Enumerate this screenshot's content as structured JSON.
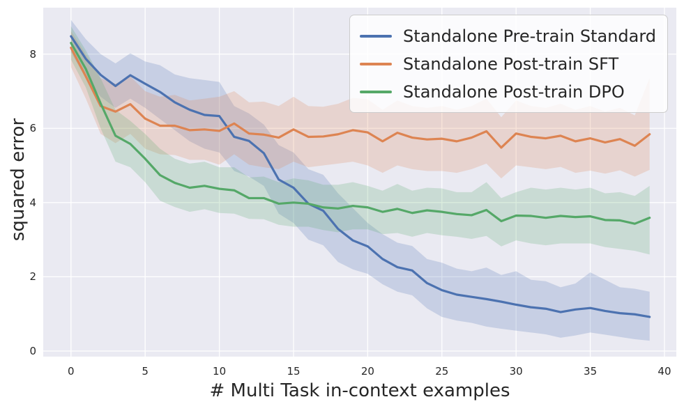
{
  "axes": {
    "background_color": "#eaeaf2",
    "grid_color": "#ffffff",
    "text_color": "#262626",
    "xticks": [
      0,
      5,
      10,
      15,
      20,
      25,
      30,
      35,
      40
    ],
    "yticks": [
      0,
      2,
      4,
      6,
      8
    ]
  },
  "chart_data": {
    "type": "line",
    "title": "",
    "xlabel": "# Multi Task in-context examples",
    "ylabel": "squared error",
    "xlim": [
      -1.87,
      40.8
    ],
    "ylim": [
      -0.15,
      9.25
    ],
    "grid": true,
    "legend_position": "upper right",
    "x": [
      0,
      1,
      2,
      3,
      4,
      5,
      6,
      7,
      8,
      9,
      10,
      11,
      12,
      13,
      14,
      15,
      16,
      17,
      18,
      19,
      20,
      21,
      22,
      23,
      24,
      25,
      26,
      27,
      28,
      29,
      30,
      31,
      32,
      33,
      34,
      35,
      36,
      37,
      38,
      39
    ],
    "series": [
      {
        "name": "Standalone Pre-train Standard",
        "color": "#4c72b0",
        "values": [
          8.48,
          7.87,
          7.44,
          7.14,
          7.43,
          7.2,
          6.98,
          6.7,
          6.5,
          6.36,
          6.33,
          5.77,
          5.66,
          5.33,
          4.62,
          4.4,
          3.97,
          3.78,
          3.29,
          2.98,
          2.82,
          2.48,
          2.26,
          2.17,
          1.83,
          1.64,
          1.52,
          1.46,
          1.4,
          1.33,
          1.25,
          1.18,
          1.14,
          1.05,
          1.12,
          1.16,
          1.08,
          1.02,
          0.99,
          0.92
        ],
        "band_upper": [
          8.92,
          8.4,
          8.0,
          7.75,
          8.02,
          7.8,
          7.7,
          7.45,
          7.35,
          7.3,
          7.25,
          6.6,
          6.4,
          6.1,
          5.55,
          5.35,
          4.9,
          4.75,
          4.25,
          3.85,
          3.45,
          3.15,
          2.92,
          2.83,
          2.48,
          2.38,
          2.22,
          2.15,
          2.25,
          2.05,
          2.15,
          1.92,
          1.88,
          1.72,
          1.82,
          2.12,
          1.92,
          1.72,
          1.68,
          1.6
        ],
        "band_lower": [
          8.05,
          7.35,
          6.85,
          6.55,
          6.8,
          6.55,
          6.25,
          5.95,
          5.65,
          5.45,
          5.35,
          4.85,
          4.7,
          4.45,
          3.7,
          3.45,
          3.0,
          2.85,
          2.4,
          2.2,
          2.08,
          1.8,
          1.6,
          1.5,
          1.15,
          0.92,
          0.82,
          0.76,
          0.66,
          0.6,
          0.55,
          0.5,
          0.45,
          0.36,
          0.42,
          0.5,
          0.44,
          0.38,
          0.32,
          0.28
        ]
      },
      {
        "name": "Standalone Post-train SFT",
        "color": "#dd8452",
        "values": [
          8.17,
          7.4,
          6.6,
          6.45,
          6.65,
          6.26,
          6.07,
          6.07,
          5.95,
          5.97,
          5.93,
          6.13,
          5.86,
          5.83,
          5.75,
          5.97,
          5.77,
          5.78,
          5.84,
          5.95,
          5.89,
          5.65,
          5.88,
          5.75,
          5.7,
          5.72,
          5.65,
          5.75,
          5.92,
          5.48,
          5.86,
          5.77,
          5.73,
          5.8,
          5.65,
          5.73,
          5.62,
          5.71,
          5.53,
          5.84
        ],
        "band_upper": [
          8.62,
          8.0,
          7.35,
          7.2,
          7.4,
          7.0,
          6.85,
          6.9,
          6.75,
          6.8,
          6.85,
          7.0,
          6.7,
          6.72,
          6.6,
          6.85,
          6.6,
          6.58,
          6.66,
          6.82,
          6.78,
          6.5,
          6.75,
          6.6,
          6.55,
          6.6,
          6.5,
          6.6,
          6.8,
          6.3,
          6.75,
          6.6,
          6.55,
          6.66,
          6.5,
          6.6,
          6.45,
          6.55,
          6.35,
          7.35
        ],
        "band_lower": [
          7.65,
          6.8,
          5.85,
          5.6,
          5.85,
          5.45,
          5.3,
          5.28,
          5.15,
          5.15,
          5.02,
          5.3,
          5.02,
          4.95,
          4.9,
          5.1,
          4.95,
          5.0,
          5.05,
          5.1,
          5.0,
          4.8,
          5.0,
          4.9,
          4.85,
          4.85,
          4.8,
          4.9,
          5.05,
          4.65,
          5.0,
          4.95,
          4.9,
          4.96,
          4.8,
          4.86,
          4.78,
          4.87,
          4.7,
          4.88
        ]
      },
      {
        "name": "Standalone Post-train DPO",
        "color": "#55a868",
        "values": [
          8.3,
          7.6,
          6.67,
          5.8,
          5.58,
          5.18,
          4.74,
          4.53,
          4.4,
          4.45,
          4.37,
          4.33,
          4.12,
          4.12,
          3.97,
          4.0,
          3.97,
          3.87,
          3.84,
          3.91,
          3.87,
          3.75,
          3.83,
          3.72,
          3.79,
          3.75,
          3.69,
          3.66,
          3.8,
          3.5,
          3.65,
          3.64,
          3.59,
          3.64,
          3.61,
          3.63,
          3.53,
          3.52,
          3.43,
          3.59
        ],
        "band_upper": [
          8.75,
          8.1,
          7.35,
          6.5,
          6.2,
          5.85,
          5.45,
          5.18,
          5.05,
          5.1,
          4.95,
          4.95,
          4.68,
          4.7,
          4.55,
          4.65,
          4.6,
          4.48,
          4.48,
          4.55,
          4.45,
          4.32,
          4.5,
          4.32,
          4.4,
          4.38,
          4.28,
          4.28,
          4.55,
          4.12,
          4.28,
          4.4,
          4.35,
          4.4,
          4.35,
          4.4,
          4.25,
          4.28,
          4.18,
          4.45
        ],
        "band_lower": [
          7.85,
          7.1,
          6.0,
          5.1,
          4.95,
          4.55,
          4.05,
          3.88,
          3.75,
          3.82,
          3.72,
          3.7,
          3.56,
          3.55,
          3.4,
          3.35,
          3.35,
          3.26,
          3.2,
          3.28,
          3.28,
          3.15,
          3.18,
          3.08,
          3.18,
          3.12,
          3.08,
          3.02,
          3.1,
          2.82,
          2.98,
          2.9,
          2.85,
          2.9,
          2.9,
          2.9,
          2.8,
          2.75,
          2.7,
          2.6
        ]
      }
    ]
  }
}
